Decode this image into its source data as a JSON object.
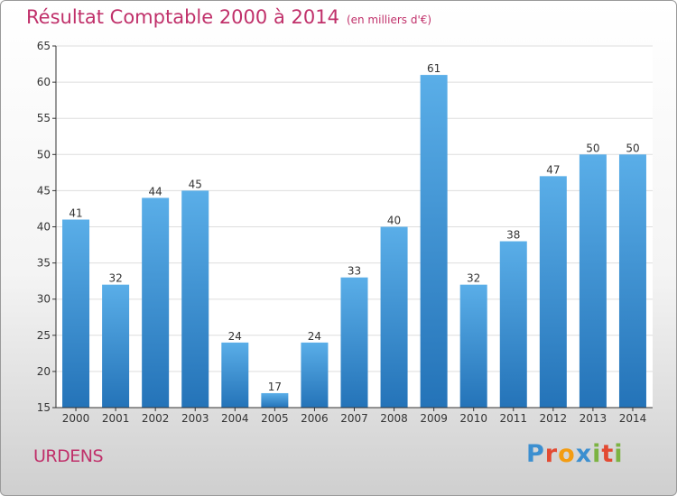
{
  "header": {
    "title": "Résultat Comptable 2000 à 2014",
    "subtitle": "(en milliers d'€)"
  },
  "footer": {
    "commune": "URDENS",
    "brand": "Proxiti",
    "brand_letters": [
      {
        "char": "P",
        "color": "#3c8fd0"
      },
      {
        "char": "r",
        "color": "#e34a32"
      },
      {
        "char": "o",
        "color": "#f39c12"
      },
      {
        "char": "x",
        "color": "#3c8fd0"
      },
      {
        "char": "i",
        "color": "#7cb342"
      },
      {
        "char": "t",
        "color": "#e34a32"
      },
      {
        "char": "i",
        "color": "#7cb342"
      }
    ]
  },
  "colors": {
    "accent": "#c0306a",
    "bar_top": "#5aaee8",
    "bar_bottom": "#2473b8",
    "axis": "#333333",
    "grid": "#dddddd"
  },
  "chart_data": {
    "type": "bar",
    "title": "Résultat Comptable 2000 à 2014",
    "subtitle": "(en milliers d'€)",
    "xlabel": "",
    "ylabel": "",
    "categories": [
      "2000",
      "2001",
      "2002",
      "2003",
      "2004",
      "2005",
      "2006",
      "2007",
      "2008",
      "2009",
      "2010",
      "2011",
      "2012",
      "2013",
      "2014"
    ],
    "values": [
      41,
      32,
      44,
      45,
      24,
      17,
      24,
      33,
      40,
      61,
      32,
      38,
      47,
      50,
      50
    ],
    "ylim": [
      15,
      65
    ],
    "yticks": [
      15,
      20,
      25,
      30,
      35,
      40,
      45,
      50,
      55,
      60,
      65
    ],
    "grid": true,
    "data_labels": true
  }
}
